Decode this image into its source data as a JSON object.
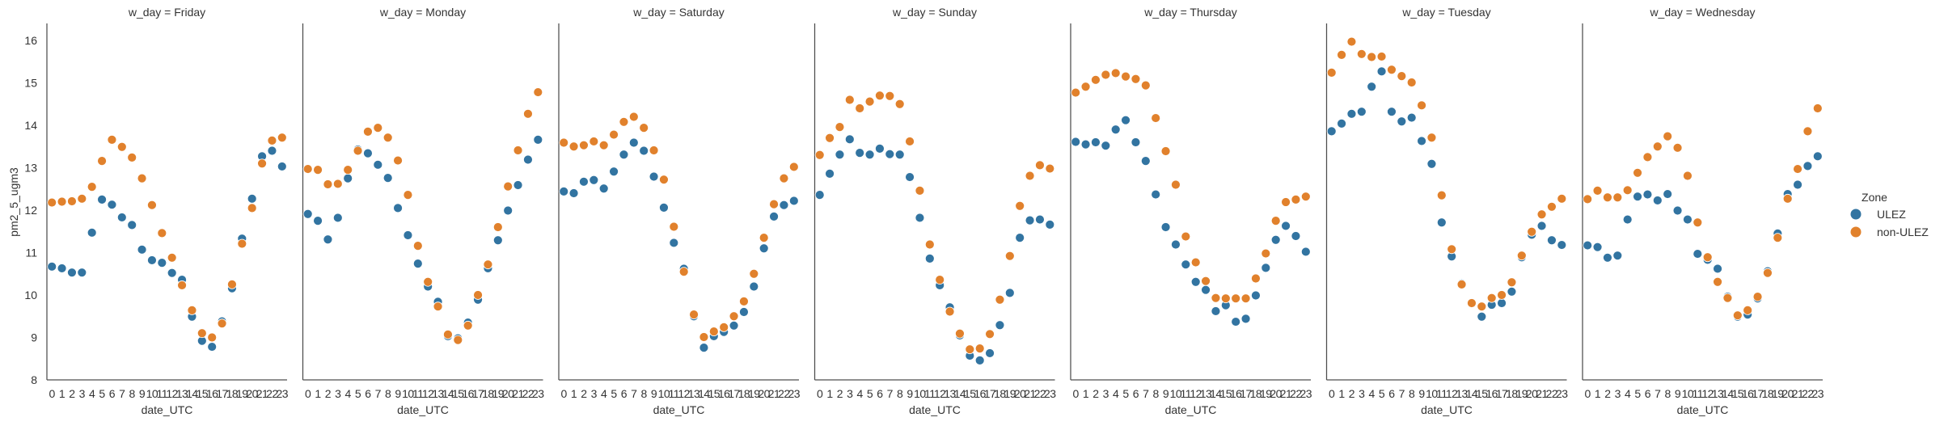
{
  "chart_data": {
    "type": "scatter",
    "ylabel": "pm2_5_ugm3",
    "xlabel": "date_UTC",
    "ylim": [
      8,
      16.4
    ],
    "yticks": [
      8,
      9,
      10,
      11,
      12,
      13,
      14,
      15,
      16
    ],
    "x": [
      "0",
      "1",
      "2",
      "3",
      "4",
      "5",
      "6",
      "7",
      "8",
      "9",
      "10",
      "11",
      "12",
      "13",
      "14",
      "15",
      "16",
      "17",
      "18",
      "19",
      "20",
      "21",
      "22",
      "23"
    ],
    "grid": false,
    "legend": {
      "title": "Zone",
      "placement": "right",
      "entries": [
        {
          "name": "ULEZ",
          "color": "#3274a1"
        },
        {
          "name": "non-ULEZ",
          "color": "#e1812c"
        }
      ]
    },
    "facets": [
      {
        "title": "w_day = Friday",
        "series": [
          {
            "name": "ULEZ",
            "values": [
              10.67,
              10.63,
              10.53,
              10.53,
              11.47,
              12.25,
              12.13,
              11.83,
              11.65,
              11.07,
              10.82,
              10.76,
              10.52,
              10.36,
              9.49,
              8.92,
              8.78,
              9.38,
              10.16,
              11.33,
              12.27,
              13.27,
              13.4,
              13.03
            ]
          },
          {
            "name": "non-ULEZ",
            "values": [
              12.18,
              12.2,
              12.21,
              12.27,
              12.55,
              13.16,
              13.66,
              13.49,
              13.24,
              12.75,
              12.12,
              11.46,
              10.88,
              10.23,
              9.64,
              9.1,
              9.0,
              9.33,
              10.25,
              11.21,
              12.05,
              13.1,
              13.64,
              13.71
            ]
          }
        ]
      },
      {
        "title": "w_day = Monday",
        "series": [
          {
            "name": "ULEZ",
            "values": [
              11.91,
              11.75,
              11.31,
              11.82,
              12.75,
              13.43,
              13.34,
              13.07,
              12.76,
              12.05,
              11.41,
              10.74,
              10.2,
              9.84,
              9.03,
              8.98,
              9.35,
              9.89,
              10.63,
              11.29,
              11.99,
              12.59,
              13.19,
              13.66
            ]
          },
          {
            "name": "non-ULEZ",
            "values": [
              12.97,
              12.95,
              12.61,
              12.62,
              12.95,
              13.4,
              13.85,
              13.94,
              13.71,
              13.17,
              12.36,
              11.16,
              10.31,
              9.73,
              9.07,
              8.94,
              9.28,
              10.0,
              10.72,
              11.6,
              12.56,
              13.41,
              14.27,
              14.78
            ]
          }
        ]
      },
      {
        "title": "w_day = Saturday",
        "series": [
          {
            "name": "ULEZ",
            "values": [
              12.44,
              12.4,
              12.67,
              12.71,
              12.51,
              12.91,
              13.31,
              13.59,
              13.4,
              12.79,
              12.06,
              11.23,
              10.62,
              9.5,
              8.76,
              9.03,
              9.13,
              9.28,
              9.6,
              10.2,
              11.1,
              11.85,
              12.12,
              12.22
            ]
          },
          {
            "name": "non-ULEZ",
            "values": [
              13.59,
              13.5,
              13.53,
              13.62,
              13.53,
              13.78,
              14.08,
              14.2,
              13.94,
              13.41,
              12.72,
              11.61,
              10.55,
              9.54,
              9.01,
              9.14,
              9.24,
              9.5,
              9.85,
              10.5,
              11.35,
              12.14,
              12.75,
              13.02
            ]
          }
        ]
      },
      {
        "title": "w_day = Sunday",
        "series": [
          {
            "name": "ULEZ",
            "values": [
              12.36,
              12.86,
              13.31,
              13.67,
              13.35,
              13.31,
              13.45,
              13.32,
              13.31,
              12.78,
              11.82,
              10.86,
              10.23,
              9.71,
              9.05,
              8.57,
              8.46,
              8.63,
              9.29,
              10.05,
              11.35,
              11.76,
              11.78,
              11.66
            ]
          },
          {
            "name": "non-ULEZ",
            "values": [
              13.3,
              13.7,
              13.96,
              14.6,
              14.4,
              14.56,
              14.7,
              14.69,
              14.5,
              13.62,
              12.46,
              11.19,
              10.36,
              9.61,
              9.09,
              8.72,
              8.74,
              9.08,
              9.89,
              10.92,
              12.1,
              12.81,
              13.06,
              12.98
            ]
          }
        ]
      },
      {
        "title": "w_day = Thursday",
        "series": [
          {
            "name": "ULEZ",
            "values": [
              13.61,
              13.55,
              13.6,
              13.52,
              13.9,
              14.12,
              13.6,
              13.16,
              12.37,
              11.6,
              11.19,
              10.72,
              10.31,
              10.12,
              9.62,
              9.76,
              9.37,
              9.44,
              9.99,
              10.64,
              11.3,
              11.63,
              11.39,
              11.02
            ]
          },
          {
            "name": "non-ULEZ",
            "values": [
              14.77,
              14.91,
              15.07,
              15.19,
              15.23,
              15.15,
              15.09,
              14.94,
              14.17,
              13.39,
              12.6,
              11.38,
              10.77,
              10.33,
              9.93,
              9.92,
              9.92,
              9.92,
              10.39,
              10.98,
              11.75,
              12.19,
              12.25,
              12.32
            ]
          }
        ]
      },
      {
        "title": "w_day = Tuesday",
        "series": [
          {
            "name": "ULEZ",
            "values": [
              13.86,
              14.04,
              14.27,
              14.32,
              14.91,
              15.27,
              14.32,
              14.09,
              14.18,
              13.63,
              13.09,
              11.71,
              10.91,
              10.27,
              9.8,
              9.49,
              9.77,
              9.81,
              10.08,
              10.89,
              11.42,
              11.63,
              11.29,
              11.18
            ]
          },
          {
            "name": "non-ULEZ",
            "values": [
              15.24,
              15.66,
              15.97,
              15.68,
              15.61,
              15.62,
              15.31,
              15.16,
              15.01,
              14.47,
              13.71,
              12.35,
              11.08,
              10.25,
              9.81,
              9.73,
              9.93,
              10.0,
              10.3,
              10.93,
              11.49,
              11.9,
              12.08,
              12.27
            ]
          }
        ]
      },
      {
        "title": "w_day = Wednesday",
        "series": [
          {
            "name": "ULEZ",
            "values": [
              11.17,
              11.13,
              10.88,
              10.93,
              11.78,
              12.32,
              12.37,
              12.23,
              12.38,
              11.99,
              11.78,
              10.97,
              10.83,
              10.62,
              9.96,
              9.49,
              9.54,
              9.92,
              10.56,
              11.45,
              12.38,
              12.6,
              13.04,
              13.27
            ]
          },
          {
            "name": "non-ULEZ",
            "values": [
              12.26,
              12.46,
              12.3,
              12.3,
              12.47,
              12.88,
              13.25,
              13.5,
              13.74,
              13.47,
              12.81,
              11.71,
              10.89,
              10.31,
              9.93,
              9.52,
              9.64,
              9.96,
              10.52,
              11.35,
              12.27,
              12.97,
              13.86,
              14.4
            ]
          }
        ]
      }
    ]
  }
}
